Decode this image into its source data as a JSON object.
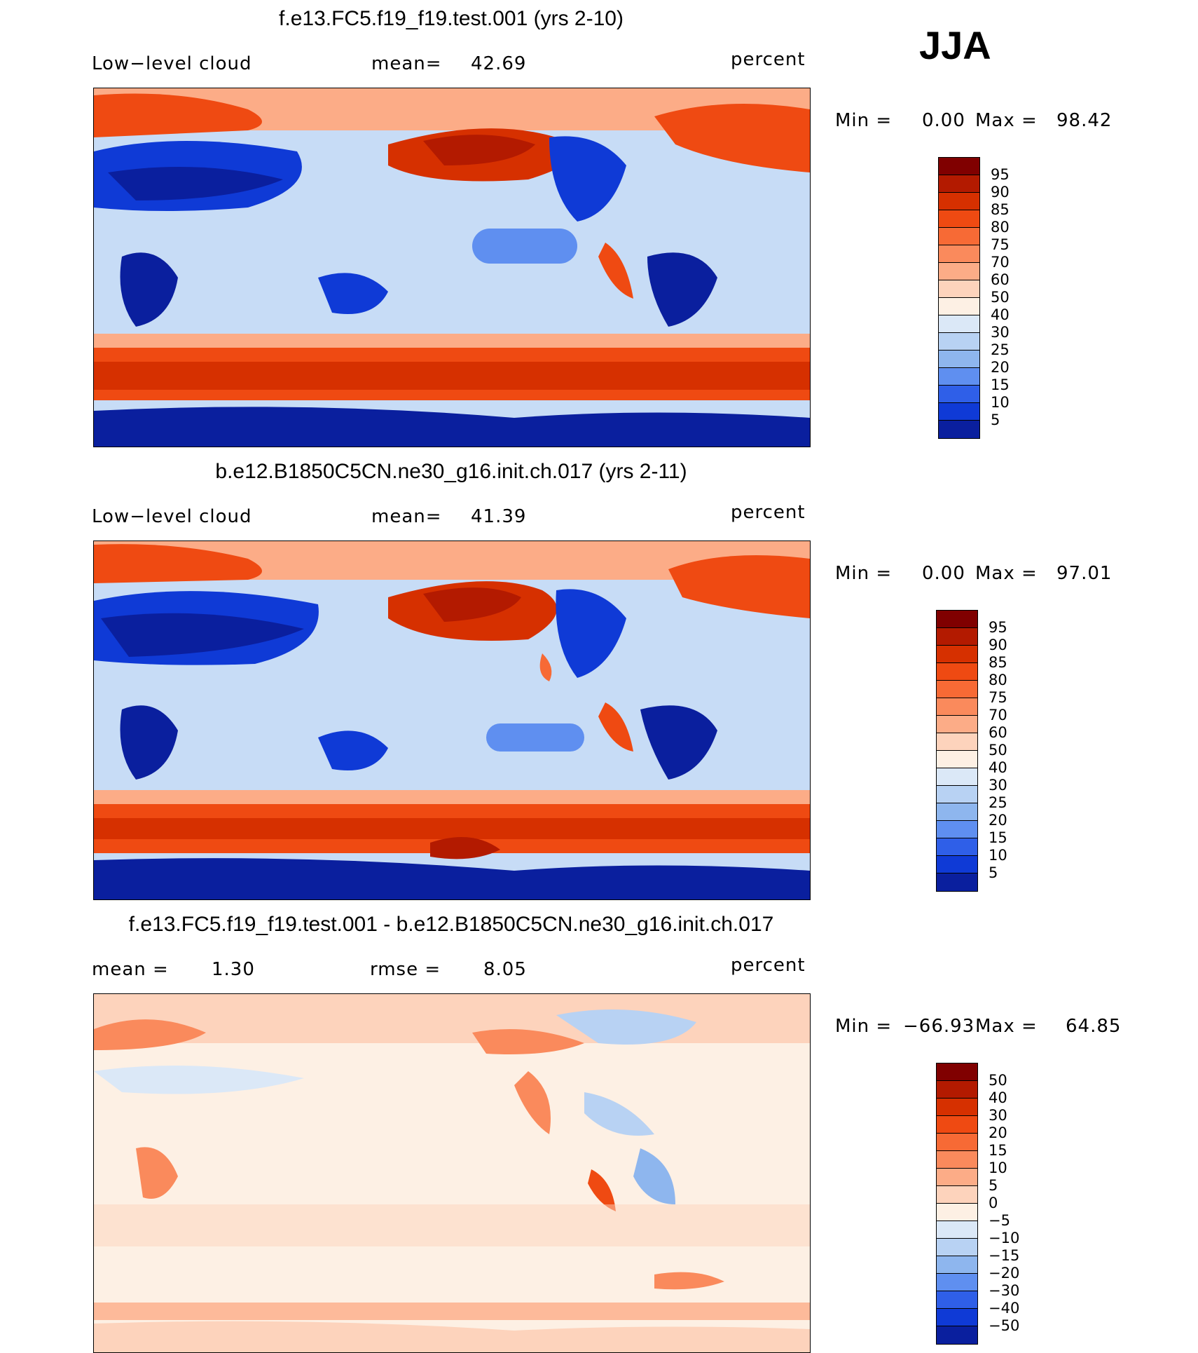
{
  "season": "JJA",
  "panels": [
    {
      "title": "f.e13.FC5.f19_f19.test.001 (yrs 2-10)",
      "left_label": "Low−level cloud",
      "mid_label": "mean=",
      "mid_value": "42.69",
      "units": "percent",
      "min_label": "Min =",
      "min_value": "0.00",
      "max_label": "Max =",
      "max_value": "98.42",
      "colorbar": {
        "labels": [
          "95",
          "90",
          "85",
          "80",
          "75",
          "70",
          "60",
          "50",
          "40",
          "30",
          "25",
          "20",
          "15",
          "10",
          "5"
        ],
        "colors": [
          "#800000",
          "#b31a00",
          "#d63000",
          "#ef4a12",
          "#f76a35",
          "#fa8a5c",
          "#fcac87",
          "#fdd3bc",
          "#fdf0e4",
          "#dbe8f7",
          "#b8d2f3",
          "#8eb6ee",
          "#5f8ff0",
          "#2f5fe8",
          "#0f3ad6",
          "#0a1f9e"
        ]
      }
    },
    {
      "title": "b.e12.B1850C5CN.ne30_g16.init.ch.017 (yrs 2-11)",
      "left_label": "Low−level cloud",
      "mid_label": "mean=",
      "mid_value": "41.39",
      "units": "percent",
      "min_label": "Min =",
      "min_value": "0.00",
      "max_label": "Max =",
      "max_value": "97.01",
      "colorbar": {
        "labels": [
          "95",
          "90",
          "85",
          "80",
          "75",
          "70",
          "60",
          "50",
          "40",
          "30",
          "25",
          "20",
          "15",
          "10",
          "5"
        ],
        "colors": [
          "#800000",
          "#b31a00",
          "#d63000",
          "#ef4a12",
          "#f76a35",
          "#fa8a5c",
          "#fcac87",
          "#fdd3bc",
          "#fdf0e4",
          "#dbe8f7",
          "#b8d2f3",
          "#8eb6ee",
          "#5f8ff0",
          "#2f5fe8",
          "#0f3ad6",
          "#0a1f9e"
        ]
      }
    },
    {
      "title": "f.e13.FC5.f19_f19.test.001 - b.e12.B1850C5CN.ne30_g16.init.ch.017",
      "left_label": "mean =",
      "left_value": "1.30",
      "mid_label": "rmse =",
      "mid_value": "8.05",
      "units": "percent",
      "min_label": "Min =",
      "min_value": "−66.93",
      "max_label": "Max =",
      "max_value": "64.85",
      "colorbar": {
        "labels": [
          "50",
          "40",
          "30",
          "20",
          "15",
          "10",
          "5",
          "0",
          "−5",
          "−10",
          "−15",
          "−20",
          "−30",
          "−40",
          "−50"
        ],
        "colors": [
          "#800000",
          "#b31a00",
          "#d63000",
          "#ef4a12",
          "#f76a35",
          "#fa8a5c",
          "#fcac87",
          "#fdd3bc",
          "#fdf0e4",
          "#dbe8f7",
          "#b8d2f3",
          "#8eb6ee",
          "#5f8ff0",
          "#2f5fe8",
          "#0f3ad6",
          "#0a1f9e"
        ]
      }
    }
  ]
}
